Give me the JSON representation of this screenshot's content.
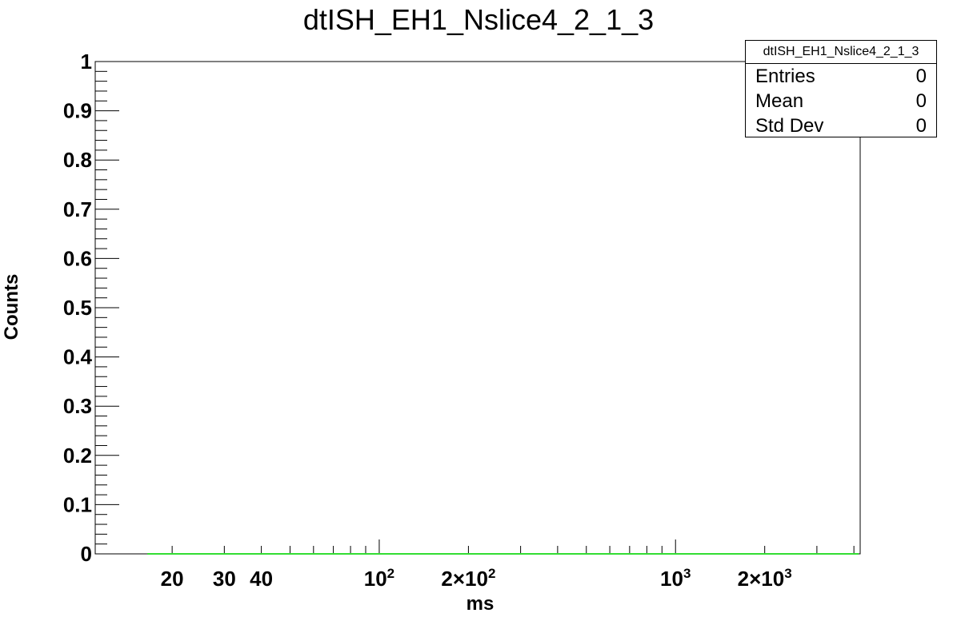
{
  "chart_data": {
    "type": "histogram",
    "title": "dtISH_EH1_Nslice4_2_1_3",
    "xlabel": "ms",
    "ylabel": "Counts",
    "xscale": "log",
    "xlim": [
      11,
      4200
    ],
    "ylim": [
      0,
      1
    ],
    "x_tick_labels": [
      {
        "value": 20,
        "label": "20"
      },
      {
        "value": 30,
        "label": "30"
      },
      {
        "value": 40,
        "label": "40"
      },
      {
        "value": 100,
        "label": "10",
        "sup": "2"
      },
      {
        "value": 200,
        "label": "2×10",
        "sup": "2"
      },
      {
        "value": 1000,
        "label": "10",
        "sup": "3"
      },
      {
        "value": 2000,
        "label": "2×10",
        "sup": "3"
      }
    ],
    "y_tick_labels": [
      "0",
      "0.1",
      "0.2",
      "0.3",
      "0.4",
      "0.5",
      "0.6",
      "0.7",
      "0.8",
      "0.9",
      "1"
    ],
    "series": [
      {
        "color": "#33dd33",
        "x": [
          16.5,
          4150
        ],
        "y": [
          0,
          0
        ]
      }
    ],
    "grid": false,
    "stats": {
      "name": "dtISH_EH1_Nslice4_2_1_3",
      "rows": [
        {
          "label": "Entries",
          "value": "0"
        },
        {
          "label": "Mean",
          "value": "0"
        },
        {
          "label": "Std Dev",
          "value": "0"
        }
      ]
    }
  }
}
